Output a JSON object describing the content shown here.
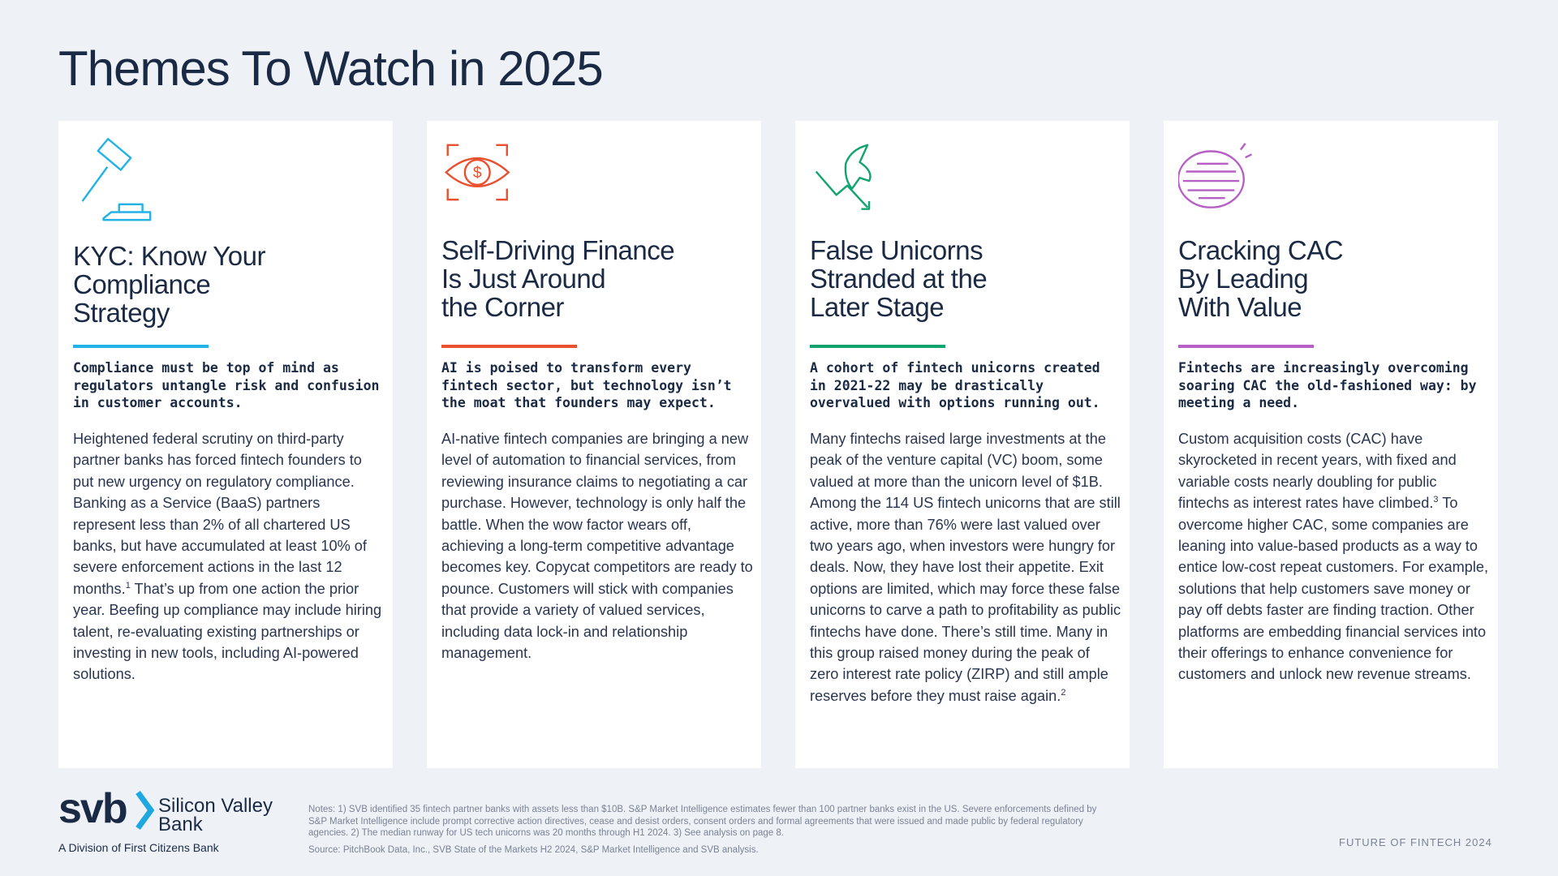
{
  "header": {
    "title": "Themes To Watch in 2025"
  },
  "cards": [
    {
      "title": [
        "KYC: Know Your",
        "Compliance",
        "Strategy"
      ],
      "color": "#22b2e6",
      "subtitle": "Compliance must be top of mind as regulators untangle risk and confusion in customer accounts.",
      "body": [
        {
          "text": "Heightened federal scrutiny on third-party partner banks has forced fintech founders to put new urgency on regulatory compliance. Banking as a Service (BaaS) partners represent less than 2% of all chartered US banks, but have accumulated at least 10% of severe enforcement actions in the last 12 months."
        },
        {
          "sup": "1"
        },
        {
          "text": " That’s up from one action the prior year. Beefing up compliance may include hiring talent, re-evaluating existing partnerships or investing in new tools, including AI-powered solutions."
        }
      ]
    },
    {
      "title": [
        "Self-Driving Finance",
        "Is Just Around",
        "the Corner"
      ],
      "color": "#e8502f",
      "subtitle": "AI is poised to transform every fintech sector, but technology isn’t the moat that founders may expect.",
      "body": [
        {
          "text": "AI-native fintech companies are bringing a new level of automation to financial services, from reviewing insurance claims to negotiating a car purchase. However, technology is only half the battle. When the wow factor wears off, achieving a long-term competitive advantage becomes key. Copycat competitors are ready to pounce. Customers will stick with companies that provide a variety of valued services, including data lock-in and relationship management."
        }
      ]
    },
    {
      "title": [
        "False Unicorns",
        "Stranded at the",
        "Later Stage"
      ],
      "color": "#12a46e",
      "subtitle": "A cohort of fintech unicorns created in 2021-22 may be drastically overvalued with options running out.",
      "body": [
        {
          "text": "Many fintechs raised large investments at the peak of the venture capital (VC) boom, some valued at more than the unicorn level of $1B. Among the 114 US fintech unicorns that are still active, more than 76% were last valued over two years ago, when investors were hungry for deals. Now, they have lost their appetite. Exit options are limited, which may force these false unicorns to carve a path to profitability as public fintechs have done. There’s still time. Many in this group raised money during the peak of zero interest rate policy (ZIRP) and still ample reserves before they must raise again."
        },
        {
          "sup": "2"
        }
      ]
    },
    {
      "title": [
        "Cracking CAC",
        "By Leading",
        "With Value"
      ],
      "color": "#b660c6",
      "subtitle": "Fintechs are increasingly overcoming soaring CAC the old-fashioned way: by meeting a need.",
      "body": [
        {
          "text": "Custom acquisition costs (CAC) have skyrocketed in recent years, with fixed and variable costs nearly doubling for public fintechs as interest rates have climbed."
        },
        {
          "sup": "3"
        },
        {
          "text": "  To overcome higher CAC, some companies are leaning into value-based products as a way to entice low-cost repeat customers. For example, solutions that help customers save money or pay off debts faster are finding traction. Other platforms are embedding financial services into their offerings to enhance convenience for customers and unlock new revenue streams."
        }
      ]
    }
  ],
  "footer": {
    "logo": {
      "mark": "svb",
      "name": [
        "Silicon Valley",
        "Bank"
      ],
      "division": "A Division of First Citizens Bank"
    },
    "notes": "Notes: 1) SVB identified 35 fintech partner banks with assets less than $10B. S&P Market Intelligence estimates fewer than 100 partner banks exist in the US. Severe enforcements defined by S&P Market Intelligence include prompt corrective action directives, cease and desist orders, consent orders and formal agreements that were issued and made public by federal regulatory agencies. 2) The median runway for US tech unicorns was 20 months through H1 2024. 3) See analysis on page 8.",
    "source": "Source: PitchBook Data, Inc., SVB State of the Markets H2 2024, S&P Market Intelligence and SVB analysis.",
    "report": "FUTURE OF FINTECH 2024"
  }
}
